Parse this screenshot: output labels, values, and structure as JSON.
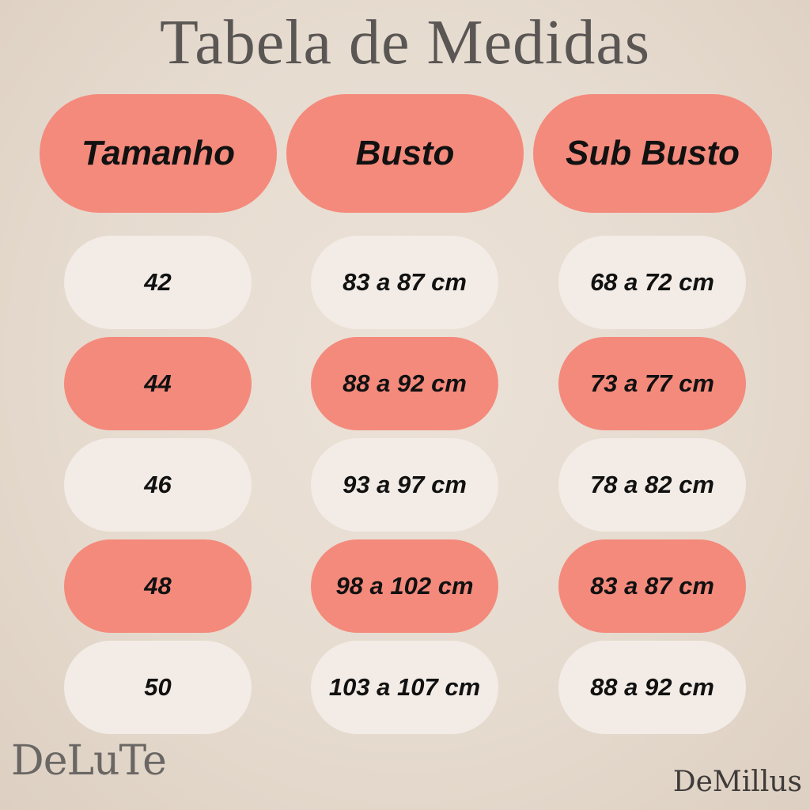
{
  "title": "Tabela de Medidas",
  "headers": [
    "Tamanho",
    "Busto",
    "Sub Busto"
  ],
  "rows": [
    {
      "tamanho": "42",
      "busto": "83 a 87 cm",
      "sub_busto": "68 a 72 cm",
      "highlight": false
    },
    {
      "tamanho": "44",
      "busto": "88 a 92 cm",
      "sub_busto": "73 a 77 cm",
      "highlight": true
    },
    {
      "tamanho": "46",
      "busto": "93 a 97 cm",
      "sub_busto": "78 a 82 cm",
      "highlight": false
    },
    {
      "tamanho": "48",
      "busto": "98 a 102 cm",
      "sub_busto": "83 a 87 cm",
      "highlight": true
    },
    {
      "tamanho": "50",
      "busto": "103 a 107 cm",
      "sub_busto": "88 a 92 cm",
      "highlight": false
    }
  ],
  "logos": {
    "left": "DeLuTe",
    "right": "DeMillus"
  },
  "colors": {
    "accent": "#f48a7c",
    "light_pill": "#f3ece6",
    "background": "#e6dbcf",
    "title_text": "#5a5654"
  }
}
